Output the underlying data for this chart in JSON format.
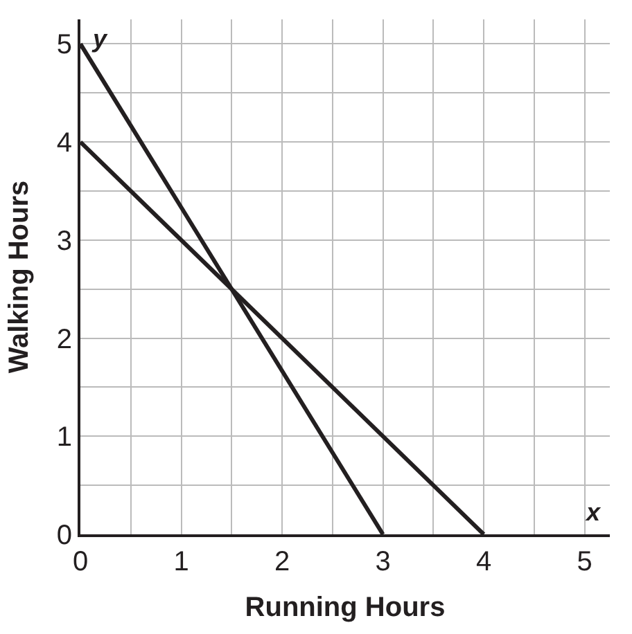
{
  "chart_data": {
    "type": "line",
    "xlabel": "Running Hours",
    "ylabel": "Walking Hours",
    "annotations": [
      "x",
      "y"
    ],
    "series": [
      {
        "x": [
          0,
          3
        ],
        "values": [
          5,
          0
        ],
        "color": "#231f20"
      },
      {
        "x": [
          0,
          4
        ],
        "values": [
          4,
          0
        ],
        "color": "#231f20"
      }
    ],
    "xlim": [
      0,
      5.25
    ],
    "ylim": [
      0,
      5.25
    ],
    "xticks": [
      0,
      {
        "value": 0.5,
        "label": null
      },
      1,
      {
        "value": 1.5,
        "label": null
      },
      2,
      {
        "value": 2.5,
        "label": null
      },
      3,
      {
        "value": 3.5,
        "label": null
      },
      4,
      {
        "value": 4.5,
        "label": null
      },
      5
    ],
    "yticks": [
      0,
      {
        "value": 0.5,
        "label": null
      },
      1,
      {
        "value": 1.5,
        "label": null
      },
      2,
      {
        "value": 2.5,
        "label": null
      },
      3,
      {
        "value": 3.5,
        "label": null
      },
      4,
      {
        "value": 4.5,
        "label": null
      },
      5
    ],
    "grid": true,
    "marker": "none",
    "line_style": "solid"
  }
}
